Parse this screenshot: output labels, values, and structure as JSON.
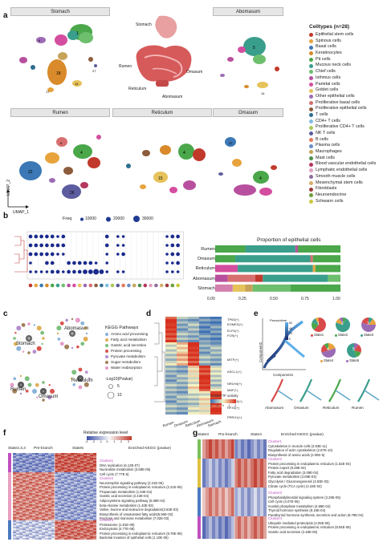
{
  "panels": {
    "a": "a",
    "b": "b",
    "c": "c",
    "d": "d",
    "e": "e",
    "f": "f",
    "g": "g"
  },
  "panel_a": {
    "umap_titles": [
      "Stomach",
      "Abomasum",
      "Rumen",
      "Reticulum",
      "Omasum"
    ],
    "anatomy_labels": {
      "stomach": "Stomach",
      "rumen": "Rumen",
      "omasum": "Omasum",
      "reticulum": "Reticulum",
      "abomasum": "Abomasum"
    },
    "axis_x": "UMAP_1",
    "axis_y": "UMAP_2",
    "legend_title": "Celltypes (n=28)",
    "celltypes": [
      {
        "name": "Epithelial stem cells",
        "color": "#c0392b"
      },
      {
        "name": "Spinous cells",
        "color": "#e8a33d"
      },
      {
        "name": "Basal cells",
        "color": "#3b78b5"
      },
      {
        "name": "Keratinocytes",
        "color": "#d98a2b"
      },
      {
        "name": "Pit cells",
        "color": "#4aa74a"
      },
      {
        "name": "Mucous neck cells",
        "color": "#3a9e8c"
      },
      {
        "name": "Chief cells",
        "color": "#6dbf6d"
      },
      {
        "name": "Isthmus cells",
        "color": "#b84f9e"
      },
      {
        "name": "Parietal cells",
        "color": "#d44ea0"
      },
      {
        "name": "Goblet cells",
        "color": "#e6c25a"
      },
      {
        "name": "Other epithelial cells",
        "color": "#9c6bb5"
      },
      {
        "name": "Proliferative basal cells",
        "color": "#d86f6f"
      },
      {
        "name": "Proliferative epithelial cells",
        "color": "#8c5c3c"
      },
      {
        "name": "T cells",
        "color": "#2f6e8f"
      },
      {
        "name": "CD4+ T cells",
        "color": "#7fbfe0"
      },
      {
        "name": "Proliferative CD4+ T cells",
        "color": "#a9c95a"
      },
      {
        "name": "NK T cells",
        "color": "#5c5c9e"
      },
      {
        "name": "B cells",
        "color": "#e47a5b"
      },
      {
        "name": "Plasma cells",
        "color": "#6a8cc7"
      },
      {
        "name": "Macrophages",
        "color": "#c7a35a"
      },
      {
        "name": "Mast cells",
        "color": "#4f8f4f"
      },
      {
        "name": "Blood vascular endothelial cells",
        "color": "#b5365e"
      },
      {
        "name": "Lymphatic endothelial cells",
        "color": "#e0a0c0"
      },
      {
        "name": "Smooth muscle cells",
        "color": "#8d6e99"
      },
      {
        "name": "Mesenchymal stem cells",
        "color": "#d4b06a"
      },
      {
        "name": "Fibroblasts",
        "color": "#9b3a3a"
      },
      {
        "name": "Neuroendocrine",
        "color": "#6e9e3a"
      },
      {
        "name": "Schwann cells",
        "color": "#c9c93a"
      }
    ]
  },
  "panel_b": {
    "legend_label": "Freq",
    "size_legend": [
      "10000",
      "20000",
      "30000"
    ],
    "right_title": "Proportion of epithelial cells",
    "rows": [
      "Rumen",
      "Omasum",
      "Reticulum",
      "Abomasum",
      "Stomach"
    ],
    "x_ticks": [
      "0.00",
      "0.25",
      "0.50",
      "0.75",
      "1.00"
    ]
  },
  "panel_c": {
    "nodes": [
      "Abomasum",
      "Stomach",
      "Rumen",
      "Omasum",
      "Reticulum"
    ],
    "legend_title": "KEGG Pathways",
    "pathways": [
      {
        "name": "Amino acid processing",
        "color": "#8bb3d9"
      },
      {
        "name": "Fatty acid metabolism",
        "color": "#e0b05a"
      },
      {
        "name": "Gastric acid secretion",
        "color": "#7dbf7d"
      },
      {
        "name": "Protein processing",
        "color": "#d9534f"
      },
      {
        "name": "Pyruvate metabolism",
        "color": "#b58fcf"
      },
      {
        "name": "Sugar metabolism",
        "color": "#a3805a"
      },
      {
        "name": "Water reabsorption",
        "color": "#e59ac9"
      }
    ],
    "size_title": "-Log10(Pvalue)",
    "size_values": [
      "5",
      "10"
    ]
  },
  "panel_d": {
    "tfs": [
      "TP63(+)",
      "EOMES(+)",
      "ELF5(+)",
      "FOS(+)",
      "MITF(+)",
      "ASCL1(+)",
      "NR1H4(+)",
      "MAF(+)",
      "FOXO3(+)",
      "RFX3(+)",
      "PRRX1(+)"
    ],
    "columns": [
      "Rumen",
      "Omasum",
      "Reticulum",
      "Abomasum",
      "Stomach"
    ],
    "scale_label": "Scaled TF activity",
    "scale_ticks": [
      "-2",
      "-1",
      "0",
      "1",
      "2"
    ]
  },
  "panel_e": {
    "axis_y": "Component2",
    "axis_x": "Component1",
    "time_label": "Pseudotime",
    "time_ticks": [
      "60",
      "40",
      "20",
      "0"
    ],
    "states": [
      "State1",
      "State2",
      "State3",
      "State4",
      "State5"
    ],
    "pie_labels": [
      "1",
      "2",
      "3",
      "4",
      "5"
    ],
    "bottom_labels": [
      "Abomasum",
      "Omasum",
      "Reticulum",
      "Rumen"
    ]
  },
  "panel_f": {
    "header": [
      "State2,3,4",
      "Pre-branch",
      "State5",
      "Enriched KEGG (pvalue)"
    ],
    "scale_title": "Relative expression level",
    "scale_ticks": [
      "-3",
      "-2",
      "-1",
      "0",
      "1",
      "2",
      "3"
    ],
    "clusters": [
      {
        "title": "Cluster1",
        "terms": [
          "DNA replication (6.13E-07)",
          "Nucleotide metabolism (3.68E-05)",
          "Cell cycle (7.77E-5)"
        ]
      },
      {
        "title": "Cluster2",
        "terms": [
          "Neurotrophin signaling pathway (2.21E-05)",
          "Protein processing in endoplasmic reticulum (2.21E-05)",
          "Propanoate metabolism (1.94E-04)",
          "Gastric acid secretion (2.43E-04)",
          "Adipocytokine signaling pathway (5.68E-04)",
          "beta-Alanine metabolism (1.40E-03)",
          "Valine, leucine and isoleucine degradation(3.63E-03)",
          "Biosynthesis of unsaturated fatty acids(5.56E-03)",
          "Fructose and mannose metabolism (7.02E-03)"
        ]
      },
      {
        "title": "Cluster3",
        "terms": [
          "Proteasome (1.91E-09)",
          "Endocytosis (4.77E-08)",
          "Protein processing in endoplasmic reticulum (9.79E-08)",
          "Bacterial invasion of epithelial cells (1.10E-06)"
        ]
      }
    ]
  },
  "panel_g": {
    "header": [
      "State3",
      "Pre-branch",
      "State4",
      "Enriched KEGG (pvalue)"
    ],
    "clusters": [
      {
        "title": "Cluster1",
        "terms": [
          "Cytoskeleton in muscle cells (3.93E-11)",
          "Regulation of actin cytoskeleton (2.87E-10)",
          "Biosynthesis of amino acids (2.00E-5)"
        ]
      },
      {
        "title": "Cluster2",
        "terms": [
          "Protein processing in endoplasmic reticulum (1.52E-04)",
          "Protein export (9.29E-04)",
          "Fatty acid degradation (3.09E-04)",
          "Pyruvate metabolism (3.09E-04)",
          "Glycolysis / Gluconeogenesis (3.93E-03)",
          "Citrate cycle (TCA cycle) (4.34E-04)"
        ]
      },
      {
        "title": "Cluster3",
        "terms": [
          "Phosphatidylinositol signaling system (2.29E-05)",
          "Cell cycle (4.07E-05)",
          "Inositol phosphate metabolism (4.88E-04)",
          "Thyroid hormone synthesis (8.16E-04)",
          "Parathyroid hormone synthesis, secretion and action (8.79E-04)"
        ]
      },
      {
        "title": "Cluster4",
        "terms": [
          "Ubiquitin mediated proteolysis (4.05E-06)",
          "Protein processing in endoplasmic reticulum (8.84E-06)",
          "Gastric acid secretion (2.48E-06)"
        ]
      }
    ]
  }
}
